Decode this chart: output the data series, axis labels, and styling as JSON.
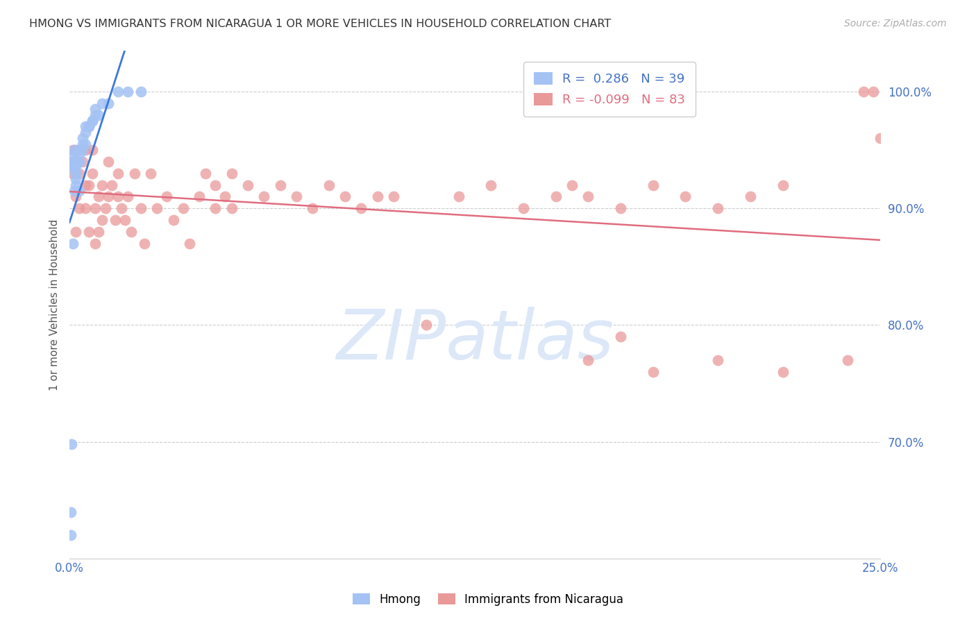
{
  "title": "HMONG VS IMMIGRANTS FROM NICARAGUA 1 OR MORE VEHICLES IN HOUSEHOLD CORRELATION CHART",
  "source": "Source: ZipAtlas.com",
  "ylabel": "1 or more Vehicles in Household",
  "legend_hmong": "Hmong",
  "legend_nicaragua": "Immigrants from Nicaragua",
  "R_hmong": 0.286,
  "N_hmong": 39,
  "R_nicaragua": -0.099,
  "N_nicaragua": 83,
  "x_min": 0.0,
  "x_max": 0.25,
  "y_min": 0.6,
  "y_max": 1.035,
  "x_ticks": [
    0.0,
    0.05,
    0.1,
    0.15,
    0.2,
    0.25
  ],
  "x_tick_labels": [
    "0.0%",
    "",
    "",
    "",
    "",
    "25.0%"
  ],
  "y_ticks": [
    0.7,
    0.8,
    0.9,
    1.0
  ],
  "y_tick_labels": [
    "70.0%",
    "80.0%",
    "90.0%",
    "100.0%"
  ],
  "hmong_color": "#a4c2f4",
  "nicaragua_color": "#ea9999",
  "trendline_hmong_color": "#3c78d8",
  "trendline_nicaragua_color": "#e06c7f",
  "watermark_color": "#dce8f8",
  "background_color": "#ffffff",
  "hmong_x": [
    0.0005,
    0.0005,
    0.0007,
    0.001,
    0.001,
    0.001,
    0.001,
    0.001,
    0.0015,
    0.0015,
    0.002,
    0.002,
    0.002,
    0.002,
    0.002,
    0.002,
    0.003,
    0.003,
    0.003,
    0.003,
    0.003,
    0.004,
    0.004,
    0.004,
    0.005,
    0.005,
    0.005,
    0.006,
    0.006,
    0.007,
    0.007,
    0.008,
    0.008,
    0.009,
    0.01,
    0.012,
    0.015,
    0.018,
    0.022
  ],
  "hmong_y": [
    0.64,
    0.62,
    0.698,
    0.935,
    0.935,
    0.94,
    0.945,
    0.87,
    0.95,
    0.915,
    0.92,
    0.925,
    0.93,
    0.94,
    0.93,
    0.935,
    0.94,
    0.94,
    0.945,
    0.95,
    0.915,
    0.95,
    0.955,
    0.96,
    0.97,
    0.955,
    0.965,
    0.97,
    0.97,
    0.975,
    0.975,
    0.98,
    0.985,
    0.98,
    0.99,
    0.99,
    1.0,
    1.0,
    1.0
  ],
  "nicaragua_x": [
    0.001,
    0.001,
    0.001,
    0.002,
    0.002,
    0.002,
    0.003,
    0.003,
    0.003,
    0.004,
    0.004,
    0.005,
    0.005,
    0.005,
    0.006,
    0.006,
    0.007,
    0.007,
    0.008,
    0.008,
    0.009,
    0.009,
    0.01,
    0.01,
    0.011,
    0.012,
    0.012,
    0.013,
    0.014,
    0.015,
    0.015,
    0.016,
    0.017,
    0.018,
    0.019,
    0.02,
    0.022,
    0.023,
    0.025,
    0.027,
    0.03,
    0.032,
    0.035,
    0.037,
    0.04,
    0.042,
    0.045,
    0.045,
    0.048,
    0.05,
    0.05,
    0.055,
    0.06,
    0.065,
    0.07,
    0.075,
    0.08,
    0.085,
    0.09,
    0.095,
    0.1,
    0.11,
    0.12,
    0.13,
    0.14,
    0.15,
    0.155,
    0.16,
    0.17,
    0.18,
    0.19,
    0.2,
    0.21,
    0.22,
    0.16,
    0.17,
    0.18,
    0.2,
    0.22,
    0.24,
    0.245,
    0.248,
    0.25
  ],
  "nicaragua_y": [
    0.93,
    0.94,
    0.95,
    0.88,
    0.91,
    0.95,
    0.9,
    0.93,
    0.95,
    0.94,
    0.95,
    0.9,
    0.92,
    0.95,
    0.88,
    0.92,
    0.93,
    0.95,
    0.87,
    0.9,
    0.88,
    0.91,
    0.89,
    0.92,
    0.9,
    0.91,
    0.94,
    0.92,
    0.89,
    0.91,
    0.93,
    0.9,
    0.89,
    0.91,
    0.88,
    0.93,
    0.9,
    0.87,
    0.93,
    0.9,
    0.91,
    0.89,
    0.9,
    0.87,
    0.91,
    0.93,
    0.92,
    0.9,
    0.91,
    0.93,
    0.9,
    0.92,
    0.91,
    0.92,
    0.91,
    0.9,
    0.92,
    0.91,
    0.9,
    0.91,
    0.91,
    0.8,
    0.91,
    0.92,
    0.9,
    0.91,
    0.92,
    0.91,
    0.9,
    0.92,
    0.91,
    0.9,
    0.91,
    0.92,
    0.77,
    0.79,
    0.76,
    0.77,
    0.76,
    0.77,
    1.0,
    1.0,
    0.96
  ]
}
